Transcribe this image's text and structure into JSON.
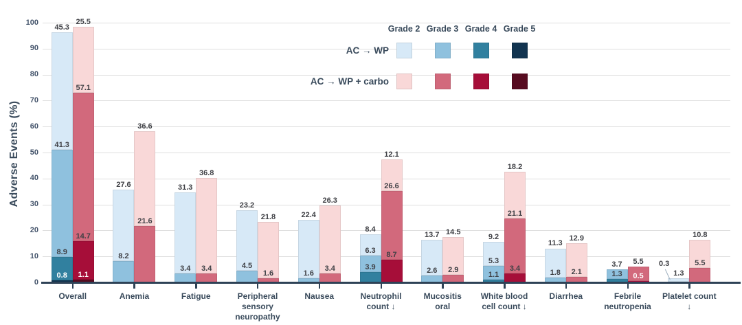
{
  "axis": {
    "ylabel": "Adverse Events (%)",
    "ymin": 0,
    "ymax": 100,
    "ystep": 10,
    "yticks": [
      0,
      10,
      20,
      30,
      40,
      50,
      60,
      70,
      80,
      90,
      100
    ]
  },
  "legend": {
    "grade_headers": [
      "Grade 2",
      "Grade 3",
      "Grade 4",
      "Grade 5"
    ],
    "rows": [
      "AC → WP",
      "AC → WP + carbo"
    ]
  },
  "palette": {
    "AC → WP": {
      "Grade 2": "#d7e9f7",
      "Grade 3": "#8fc1de",
      "Grade 4": "#31809f",
      "Grade 5": "#123450"
    },
    "AC → WP + carbo": {
      "Grade 2": "#f9d8d8",
      "Grade 3": "#d2697c",
      "Grade 4": "#a60e39",
      "Grade 5": "#570b20"
    }
  },
  "text_colors": {
    "value_label": "#3f4045",
    "value_label_inside": "#ffffff",
    "axis_text": "#3a4b5c"
  },
  "chart_data": {
    "type": "bar",
    "stacked": true,
    "title": "",
    "ylabel": "Adverse Events (%)",
    "ylim": [
      0,
      100
    ],
    "grid": true,
    "legend_position": "top-right",
    "grades": [
      "Grade 2",
      "Grade 3",
      "Grade 4",
      "Grade 5"
    ],
    "arms": [
      "AC → WP",
      "AC → WP + carbo"
    ],
    "categories": [
      "Overall",
      "Anemia",
      "Fatigue",
      "Peripheral sensory neuropathy",
      "Nausea",
      "Neutrophil count ↓",
      "Mucositis oral",
      "White blood cell count ↓",
      "Diarrhea",
      "Febrile neutropenia",
      "Platelet count ↓"
    ],
    "groups": [
      {
        "category": "Overall",
        "bars": [
          {
            "arm": "AC → WP",
            "segments": [
              {
                "grade": "Grade 5",
                "value": 0.8,
                "label_inside": true
              },
              {
                "grade": "Grade 4",
                "value": 8.9
              },
              {
                "grade": "Grade 3",
                "value": 41.3
              },
              {
                "grade": "Grade 2",
                "value": 45.3
              }
            ]
          },
          {
            "arm": "AC → WP + carbo",
            "segments": [
              {
                "grade": "Grade 5",
                "value": 1.1,
                "label_inside": true
              },
              {
                "grade": "Grade 4",
                "value": 14.7
              },
              {
                "grade": "Grade 3",
                "value": 57.1
              },
              {
                "grade": "Grade 2",
                "value": 25.5
              }
            ]
          }
        ]
      },
      {
        "category": "Anemia",
        "bars": [
          {
            "arm": "AC → WP",
            "segments": [
              {
                "grade": "Grade 3",
                "value": 8.2
              },
              {
                "grade": "Grade 2",
                "value": 27.6
              }
            ]
          },
          {
            "arm": "AC → WP + carbo",
            "segments": [
              {
                "grade": "Grade 3",
                "value": 21.6
              },
              {
                "grade": "Grade 2",
                "value": 36.6
              }
            ]
          }
        ]
      },
      {
        "category": "Fatigue",
        "bars": [
          {
            "arm": "AC → WP",
            "segments": [
              {
                "grade": "Grade 3",
                "value": 3.4
              },
              {
                "grade": "Grade 2",
                "value": 31.3
              }
            ]
          },
          {
            "arm": "AC → WP + carbo",
            "segments": [
              {
                "grade": "Grade 3",
                "value": 3.4
              },
              {
                "grade": "Grade 2",
                "value": 36.8
              }
            ]
          }
        ]
      },
      {
        "category": "Peripheral sensory neuropathy",
        "bars": [
          {
            "arm": "AC → WP",
            "segments": [
              {
                "grade": "Grade 3",
                "value": 4.5
              },
              {
                "grade": "Grade 2",
                "value": 23.2
              }
            ]
          },
          {
            "arm": "AC → WP + carbo",
            "segments": [
              {
                "grade": "Grade 3",
                "value": 1.6
              },
              {
                "grade": "Grade 2",
                "value": 21.8
              }
            ]
          }
        ]
      },
      {
        "category": "Nausea",
        "bars": [
          {
            "arm": "AC → WP",
            "segments": [
              {
                "grade": "Grade 3",
                "value": 1.6
              },
              {
                "grade": "Grade 2",
                "value": 22.4
              }
            ]
          },
          {
            "arm": "AC → WP + carbo",
            "segments": [
              {
                "grade": "Grade 3",
                "value": 3.4
              },
              {
                "grade": "Grade 2",
                "value": 26.3
              }
            ]
          }
        ]
      },
      {
        "category": "Neutrophil count ↓",
        "bars": [
          {
            "arm": "AC → WP",
            "segments": [
              {
                "grade": "Grade 4",
                "value": 3.9
              },
              {
                "grade": "Grade 3",
                "value": 6.3
              },
              {
                "grade": "Grade 2",
                "value": 8.4
              }
            ]
          },
          {
            "arm": "AC → WP + carbo",
            "segments": [
              {
                "grade": "Grade 4",
                "value": 8.7
              },
              {
                "grade": "Grade 3",
                "value": 26.6
              },
              {
                "grade": "Grade 2",
                "value": 12.1
              }
            ]
          }
        ]
      },
      {
        "category": "Mucositis oral",
        "bars": [
          {
            "arm": "AC → WP",
            "segments": [
              {
                "grade": "Grade 3",
                "value": 2.6
              },
              {
                "grade": "Grade 2",
                "value": 13.7
              }
            ]
          },
          {
            "arm": "AC → WP + carbo",
            "segments": [
              {
                "grade": "Grade 3",
                "value": 2.9
              },
              {
                "grade": "Grade 2",
                "value": 14.5
              }
            ]
          }
        ]
      },
      {
        "category": "White blood cell count ↓",
        "bars": [
          {
            "arm": "AC → WP",
            "segments": [
              {
                "grade": "Grade 4",
                "value": 1.1
              },
              {
                "grade": "Grade 3",
                "value": 5.3
              },
              {
                "grade": "Grade 2",
                "value": 9.2
              }
            ]
          },
          {
            "arm": "AC → WP + carbo",
            "segments": [
              {
                "grade": "Grade 4",
                "value": 3.4
              },
              {
                "grade": "Grade 3",
                "value": 21.1
              },
              {
                "grade": "Grade 2",
                "value": 18.2
              }
            ]
          }
        ]
      },
      {
        "category": "Diarrhea",
        "bars": [
          {
            "arm": "AC → WP",
            "segments": [
              {
                "grade": "Grade 3",
                "value": 1.8
              },
              {
                "grade": "Grade 2",
                "value": 11.3
              }
            ]
          },
          {
            "arm": "AC → WP + carbo",
            "segments": [
              {
                "grade": "Grade 3",
                "value": 2.1
              },
              {
                "grade": "Grade 2",
                "value": 12.9
              }
            ]
          }
        ]
      },
      {
        "category": "Febrile neutropenia",
        "bars": [
          {
            "arm": "AC → WP",
            "segments": [
              {
                "grade": "Grade 4",
                "value": 1.3
              },
              {
                "grade": "Grade 3",
                "value": 3.7
              }
            ]
          },
          {
            "arm": "AC → WP + carbo",
            "segments": [
              {
                "grade": "Grade 4",
                "value": 0.5,
                "label_inside": true
              },
              {
                "grade": "Grade 3",
                "value": 5.5
              }
            ]
          }
        ]
      },
      {
        "category": "Platelet count ↓",
        "bars": [
          {
            "arm": "AC → WP",
            "segments": [
              {
                "grade": "Grade 3",
                "value": 0.3,
                "callout": true
              },
              {
                "grade": "Grade 2",
                "value": 1.3
              }
            ]
          },
          {
            "arm": "AC → WP + carbo",
            "segments": [
              {
                "grade": "Grade 3",
                "value": 5.5
              },
              {
                "grade": "Grade 2",
                "value": 10.8
              }
            ]
          }
        ]
      }
    ]
  }
}
